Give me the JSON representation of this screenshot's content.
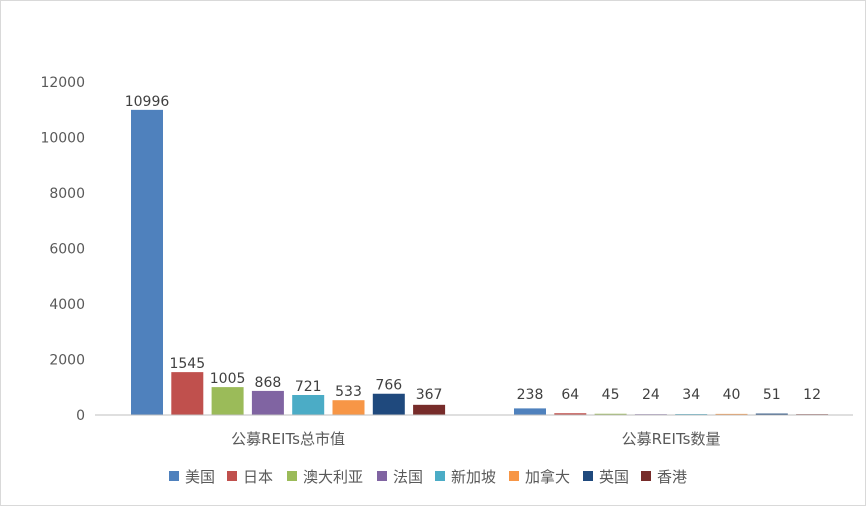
{
  "chart_data": {
    "type": "bar",
    "categories": [
      "公募REITs总市值",
      "公募REITs数量"
    ],
    "series": [
      {
        "name": "美国",
        "color": "#4F81BD",
        "values": [
          10996,
          238
        ],
        "labels": [
          "10996",
          "238"
        ]
      },
      {
        "name": "日本",
        "color": "#C0504D",
        "values": [
          1545,
          64
        ],
        "labels": [
          "1545",
          "64"
        ]
      },
      {
        "name": "澳大利亚",
        "color": "#9BBB59",
        "values": [
          1005,
          45
        ],
        "labels": [
          "1005",
          "45"
        ]
      },
      {
        "name": "法国",
        "color": "#8064A2",
        "values": [
          868,
          24
        ],
        "labels": [
          "868",
          "24"
        ]
      },
      {
        "name": "新加坡",
        "color": "#4BACC6",
        "values": [
          721,
          34
        ],
        "labels": [
          "721",
          "34"
        ]
      },
      {
        "name": "加拿大",
        "color": "#F79646",
        "values": [
          533,
          40
        ],
        "labels": [
          "533",
          "40"
        ]
      },
      {
        "name": "英国",
        "color": "#1F497D",
        "values": [
          766,
          51
        ],
        "labels": [
          "766",
          "51"
        ]
      },
      {
        "name": "香港",
        "color": "#772C2A",
        "values": [
          367,
          12
        ],
        "labels": [
          "367",
          "12"
        ]
      }
    ],
    "yticks": [
      "0",
      "2000",
      "4000",
      "6000",
      "8000",
      "10000",
      "12000"
    ],
    "ylim": [
      0,
      12000
    ],
    "grid": false,
    "legend": "bottom"
  }
}
